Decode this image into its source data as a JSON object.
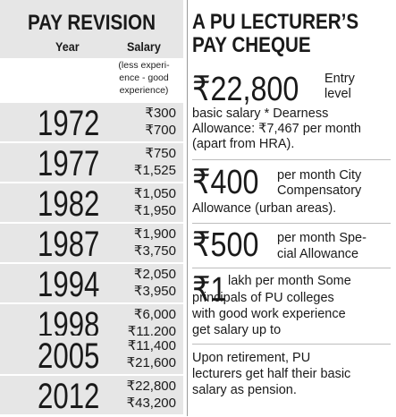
{
  "left": {
    "title": "PAY REVISION",
    "col_year": "Year",
    "col_salary": "Salary",
    "note_line1": "(less experi-",
    "note_line2": "ence - good",
    "note_line3": "experience)",
    "rows": [
      {
        "year": "1972",
        "low": "₹300",
        "high": "₹700"
      },
      {
        "year": "1977",
        "low": "₹750",
        "high": "₹1,525"
      },
      {
        "year": "1982",
        "low": "₹1,050",
        "high": "₹1,950"
      },
      {
        "year": "1987",
        "low": "₹1,900",
        "high": "₹3,750"
      },
      {
        "year": "1994",
        "low": "₹2,050",
        "high": "₹3,950"
      },
      {
        "year": "1998",
        "low": "₹6,000",
        "high": "₹11,200"
      },
      {
        "year": "2005",
        "low": "₹11,400",
        "high": "₹21,600"
      },
      {
        "year": "2012",
        "low": "₹22,800",
        "high": "₹43,200"
      }
    ]
  },
  "right": {
    "title_line1": "A PU LECTURER’S",
    "title_line2": "PAY CHEQUE",
    "entry": {
      "amount": "₹22,800",
      "t1": "Entry",
      "t2": "level",
      "t3": "basic salary * Dearness",
      "t4": "Allowance: ₹7,467 per month",
      "t5": "(apart from HRA)."
    },
    "cca": {
      "amount": "₹400",
      "t1": "per month City",
      "t2": "Compensatory",
      "t3": "Allowance  (urban areas)."
    },
    "special": {
      "amount": "₹500",
      "t1": "per month Spe-",
      "t2": "cial Allowance"
    },
    "principal": {
      "amount": "₹1",
      "t1": "lakh per month Some",
      "t2": "principals of PU colleges",
      "t3": "with good work experience",
      "t4": "get salary up to"
    },
    "pension": {
      "t1": "Upon retirement, PU",
      "t2": "lecturers get half their basic",
      "t3": "salary as pension."
    }
  }
}
